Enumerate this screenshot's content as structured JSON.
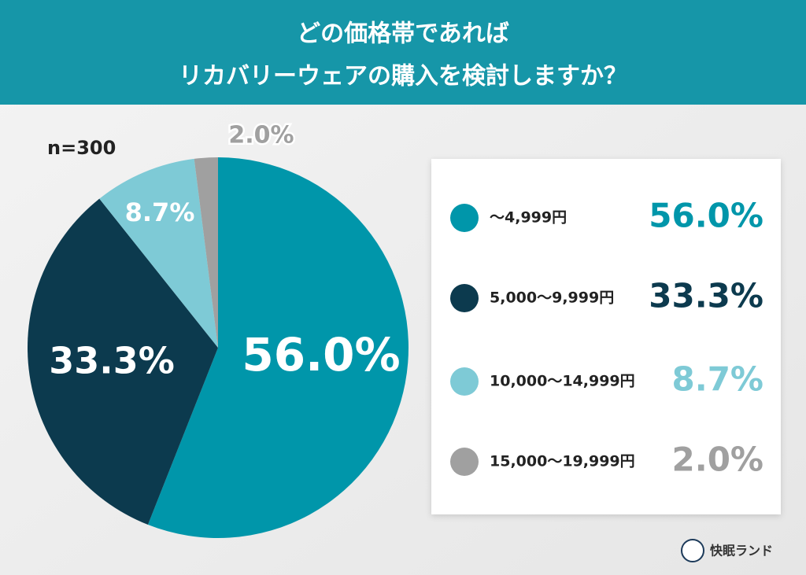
{
  "chart_data": {
    "type": "pie",
    "title": [
      "どの価格帯であれば",
      "リカバリーウェアの購入を検討しますか？"
    ],
    "subtitle": "n=300",
    "categories": [
      "～4,999円",
      "5,000～9,999円",
      "10,000～14,999円",
      "15,000～19,999円"
    ],
    "values": [
      56.0,
      33.3,
      8.7,
      2.0
    ],
    "value_labels": [
      "56.0%",
      "33.3%",
      "8.7%",
      "2.0%"
    ],
    "colors": [
      "#0096aa",
      "#0c3a4e",
      "#7ecad6",
      "#a0a0a0"
    ],
    "brand": "快眠ランド"
  }
}
